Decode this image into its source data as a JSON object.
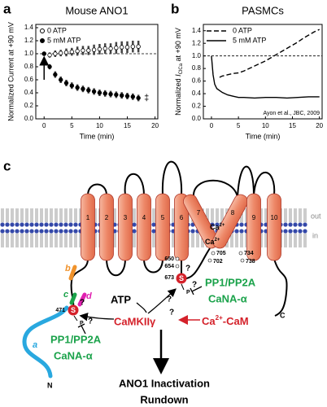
{
  "chart_data": [
    {
      "type": "scatter",
      "panel_label": "a",
      "title": "Mouse ANO1",
      "x_label": "Time (min)",
      "y_label": "Normalized Current at +90 mV",
      "xlim": [
        -1.5,
        20.5
      ],
      "xticks": [
        0,
        5,
        10,
        15,
        20
      ],
      "ylim": [
        0,
        1.45
      ],
      "yticks": [
        {
          "value": 0,
          "label": "0.0"
        },
        0.2,
        0.4,
        0.6,
        0.8,
        {
          "value": 1,
          "label": "1.0"
        },
        1.2,
        1.4
      ],
      "reference_line": 1,
      "legend": "upper left",
      "annotation": "‡",
      "x": [
        0,
        1,
        2,
        3,
        4,
        5,
        6,
        7,
        8,
        9,
        10,
        11,
        12,
        13,
        14,
        15,
        16,
        17
      ],
      "series": [
        {
          "name": "0 ATP",
          "color": "#000000",
          "marker": "open",
          "values": [
            1.0,
            0.98,
            1.0,
            1.01,
            1.02,
            1.03,
            1.04,
            1.05,
            1.05,
            1.06,
            1.07,
            1.08,
            1.08,
            1.09,
            1.1,
            1.1,
            1.11,
            1.11
          ],
          "errors": [
            0.02,
            0.04,
            0.05,
            0.05,
            0.06,
            0.06,
            0.07,
            0.07,
            0.07,
            0.08,
            0.08,
            0.08,
            0.08,
            0.09,
            0.09,
            0.09,
            0.09,
            0.09
          ]
        },
        {
          "name": "5 mM ATP",
          "color": "#000000",
          "marker": "filled",
          "values": [
            1.0,
            0.8,
            0.68,
            0.6,
            0.55,
            0.51,
            0.48,
            0.46,
            0.44,
            0.42,
            0.4,
            0.39,
            0.38,
            0.37,
            0.36,
            0.35,
            0.34,
            0.32
          ],
          "errors": [
            0.02,
            0.04,
            0.05,
            0.05,
            0.05,
            0.05,
            0.05,
            0.05,
            0.05,
            0.05,
            0.05,
            0.05,
            0.05,
            0.05,
            0.05,
            0.05,
            0.05,
            0.05
          ]
        }
      ]
    },
    {
      "type": "line",
      "panel_label": "b",
      "title": "PASMCs",
      "x_label": "Time (min)",
      "y_label_parts": [
        "Normalized ",
        "I",
        "ClCa",
        " at +90 mV"
      ],
      "xlim": [
        -1.5,
        20.5
      ],
      "xticks": [
        0,
        5,
        10,
        15,
        20
      ],
      "ylim": [
        0,
        1.5
      ],
      "yticks": [
        {
          "value": 0,
          "label": "0.0"
        },
        0.2,
        0.4,
        0.6,
        0.8,
        {
          "value": 1,
          "label": "1.0"
        },
        1.2,
        1.4
      ],
      "reference_line": 1,
      "legend": "upper left",
      "annotation": "Ayon et al., JBC, 2009",
      "series": [
        {
          "name": "0 ATP",
          "color": "#000000",
          "dash": true,
          "x": [
            1.5,
            2,
            3,
            4,
            5,
            6,
            7,
            8,
            9,
            10,
            11,
            12,
            13,
            14,
            15,
            16,
            17,
            18,
            19,
            20
          ],
          "values": [
            0.66,
            0.68,
            0.7,
            0.72,
            0.73,
            0.76,
            0.8,
            0.84,
            0.88,
            0.92,
            0.97,
            1.02,
            1.07,
            1.12,
            1.17,
            1.22,
            1.28,
            1.33,
            1.38,
            1.42
          ]
        },
        {
          "name": "5 mM ATP",
          "color": "#000000",
          "dash": false,
          "x": [
            0,
            0.3,
            0.6,
            1,
            2,
            3,
            4,
            5,
            6,
            8,
            10,
            12,
            14,
            16,
            18,
            20
          ],
          "values": [
            1.0,
            0.7,
            0.55,
            0.48,
            0.42,
            0.38,
            0.36,
            0.34,
            0.34,
            0.33,
            0.34,
            0.34,
            0.33,
            0.34,
            0.35,
            0.35
          ]
        }
      ]
    }
  ],
  "diagram": {
    "panel_label": "c",
    "out": "out",
    "in": "in",
    "helices": [
      "1",
      "2",
      "3",
      "4",
      "5",
      "6",
      "7",
      "8",
      "9",
      "10"
    ],
    "calcium": [
      {
        "ion": "Ca",
        "charge": "2+"
      },
      {
        "ion": "Ca",
        "charge": "2+"
      }
    ],
    "residues": [
      "650",
      "654",
      "673",
      "705",
      "702",
      "734",
      "738",
      "471"
    ],
    "phospho_sites": [
      "S",
      "S"
    ],
    "phosphate": [
      "P",
      "P"
    ],
    "question_marks": [
      "?",
      "?",
      "?",
      "?",
      "?",
      "?"
    ],
    "phosphatases": [
      {
        "line1": "PP1/PP2A",
        "line2": "CaNA-α"
      },
      {
        "line1": "PP1/PP2A",
        "line2": "CaNA-α"
      }
    ],
    "atp": "ATP",
    "kinase": "CaMKIIγ",
    "activator": {
      "ion": "Ca",
      "charge": "2+",
      "rest": "-CaM"
    },
    "outcome": [
      "ANO1 Inactivation",
      "Rundown"
    ],
    "regions": [
      "a",
      "b",
      "c",
      "d"
    ],
    "termini": [
      "N",
      "C"
    ]
  }
}
